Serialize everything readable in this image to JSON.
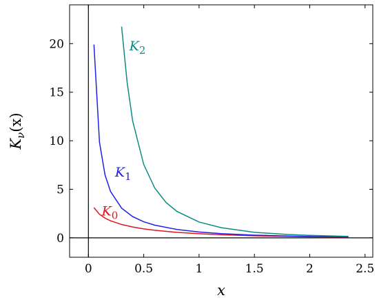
{
  "chart_data": {
    "type": "line",
    "xlabel": "x",
    "ylabel": "K",
    "ylabel_sub": "ν",
    "ylabel_arg": "(x)",
    "xlim": [
      -0.17,
      2.57
    ],
    "ylim": [
      -2.0,
      24.0
    ],
    "x_ticks": [
      0,
      0.5,
      1,
      1.5,
      2,
      2.5
    ],
    "x_tick_labels": [
      "0",
      "0.5",
      "1",
      "1.5",
      "2",
      "2.5"
    ],
    "y_ticks": [
      0,
      5,
      10,
      15,
      20
    ],
    "y_tick_labels": [
      "0",
      "5",
      "10",
      "15",
      "20"
    ],
    "grid": false,
    "legend": "none",
    "series": [
      {
        "name": "K",
        "sub": "0",
        "color": "#e0141e",
        "x": [
          0.05,
          0.1,
          0.15,
          0.2,
          0.3,
          0.4,
          0.5,
          0.6,
          0.8,
          1.0,
          1.2,
          1.5,
          1.8,
          2.0,
          2.35
        ],
        "y": [
          3.114,
          2.427,
          2.03,
          1.753,
          1.372,
          1.115,
          0.924,
          0.777,
          0.565,
          0.421,
          0.318,
          0.214,
          0.146,
          0.114,
          0.073
        ]
      },
      {
        "name": "K",
        "sub": "1",
        "color": "#1f1fe6",
        "x": [
          0.05,
          0.1,
          0.15,
          0.2,
          0.3,
          0.4,
          0.5,
          0.6,
          0.8,
          1.0,
          1.2,
          1.5,
          1.8,
          2.0,
          2.35
        ],
        "y": [
          19.91,
          9.854,
          6.477,
          4.776,
          3.056,
          2.184,
          1.656,
          1.303,
          0.862,
          0.602,
          0.435,
          0.277,
          0.183,
          0.14,
          0.089
        ]
      },
      {
        "name": "K",
        "sub": "2",
        "color": "#0e8a82",
        "x": [
          0.3,
          0.35,
          0.4,
          0.5,
          0.6,
          0.7,
          0.8,
          1.0,
          1.2,
          1.5,
          1.8,
          2.0,
          2.35
        ],
        "y": [
          21.75,
          16.0,
          12.036,
          7.551,
          5.12,
          3.662,
          2.72,
          1.625,
          1.044,
          0.564,
          0.345,
          0.254,
          0.15
        ]
      }
    ],
    "annotations": [
      {
        "text": "K",
        "sub": "2",
        "series": 2,
        "x": 0.37,
        "y": 19.8
      },
      {
        "text": "K",
        "sub": "1",
        "series": 1,
        "x": 0.24,
        "y": 6.8
      },
      {
        "text": "K",
        "sub": "0",
        "series": 0,
        "x": 0.12,
        "y": 2.8
      }
    ]
  }
}
